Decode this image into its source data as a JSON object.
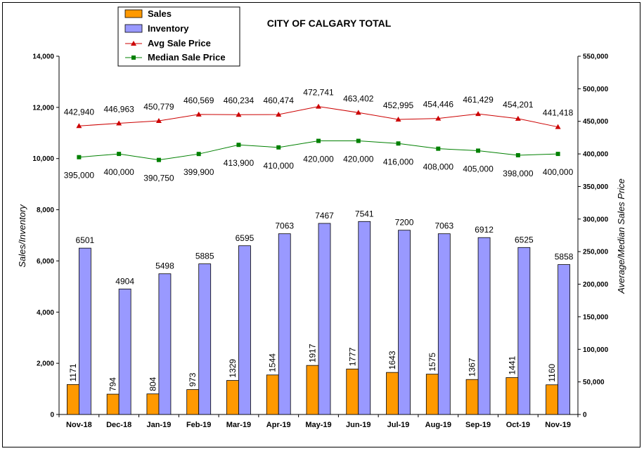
{
  "chart_data": {
    "type": "bar",
    "title": "CITY OF CALGARY TOTAL",
    "ylabel": "Sales/Inventory",
    "y2label": "Average/Median Sales Price",
    "ylim": [
      0,
      14000
    ],
    "y2lim": [
      0,
      550000
    ],
    "yticks": [
      "0",
      "2,000",
      "4,000",
      "6,000",
      "8,000",
      "10,000",
      "12,000",
      "14,000"
    ],
    "y2ticks": [
      "0",
      "50,000",
      "100,000",
      "150,000",
      "200,000",
      "250,000",
      "300,000",
      "350,000",
      "400,000",
      "450,000",
      "500,000",
      "550,000"
    ],
    "legend": "top-left",
    "categories": [
      "Nov-18",
      "Dec-18",
      "Jan-19",
      "Feb-19",
      "Mar-19",
      "Apr-19",
      "May-19",
      "Jun-19",
      "Jul-19",
      "Aug-19",
      "Sep-19",
      "Oct-19",
      "Nov-19"
    ],
    "series": [
      {
        "name": "Sales",
        "type": "bar",
        "axis": "left",
        "color": "#FF9900",
        "values": [
          1171,
          794,
          804,
          973,
          1329,
          1544,
          1917,
          1777,
          1643,
          1575,
          1367,
          1441,
          1160
        ],
        "labels": [
          "1171",
          "794",
          "804",
          "973",
          "1329",
          "1544",
          "1917",
          "1777",
          "1643",
          "1575",
          "1367",
          "1441",
          "1160"
        ]
      },
      {
        "name": "Inventory",
        "type": "bar",
        "axis": "left",
        "color": "#9999FF",
        "values": [
          6501,
          4904,
          5498,
          5885,
          6595,
          7063,
          7467,
          7541,
          7200,
          7063,
          6912,
          6525,
          5858
        ],
        "labels": [
          "6501",
          "4904",
          "5498",
          "5885",
          "6595",
          "7063",
          "7467",
          "7541",
          "7200",
          "7063",
          "6912",
          "6525",
          "5858"
        ]
      },
      {
        "name": "Avg Sale Price",
        "type": "line",
        "axis": "right",
        "color": "#CC0000",
        "marker": "triangle",
        "values": [
          442940,
          446963,
          450779,
          460569,
          460234,
          460474,
          472741,
          463402,
          452995,
          454446,
          461429,
          454201,
          441418
        ],
        "labels": [
          "442,940",
          "446,963",
          "450,779",
          "460,569",
          "460,234",
          "460,474",
          "472,741",
          "463,402",
          "452,995",
          "454,446",
          "461,429",
          "454,201",
          "441,418"
        ]
      },
      {
        "name": "Median Sale Price",
        "type": "line",
        "axis": "right",
        "color": "#008000",
        "marker": "square",
        "values": [
          395000,
          400000,
          390750,
          399900,
          413900,
          410000,
          420000,
          420000,
          416000,
          408000,
          405000,
          398000,
          400000
        ],
        "labels": [
          "395,000",
          "400,000",
          "390,750",
          "399,900",
          "413,900",
          "410,000",
          "420,000",
          "420,000",
          "416,000",
          "408,000",
          "405,000",
          "398,000",
          "400,000"
        ]
      }
    ]
  }
}
